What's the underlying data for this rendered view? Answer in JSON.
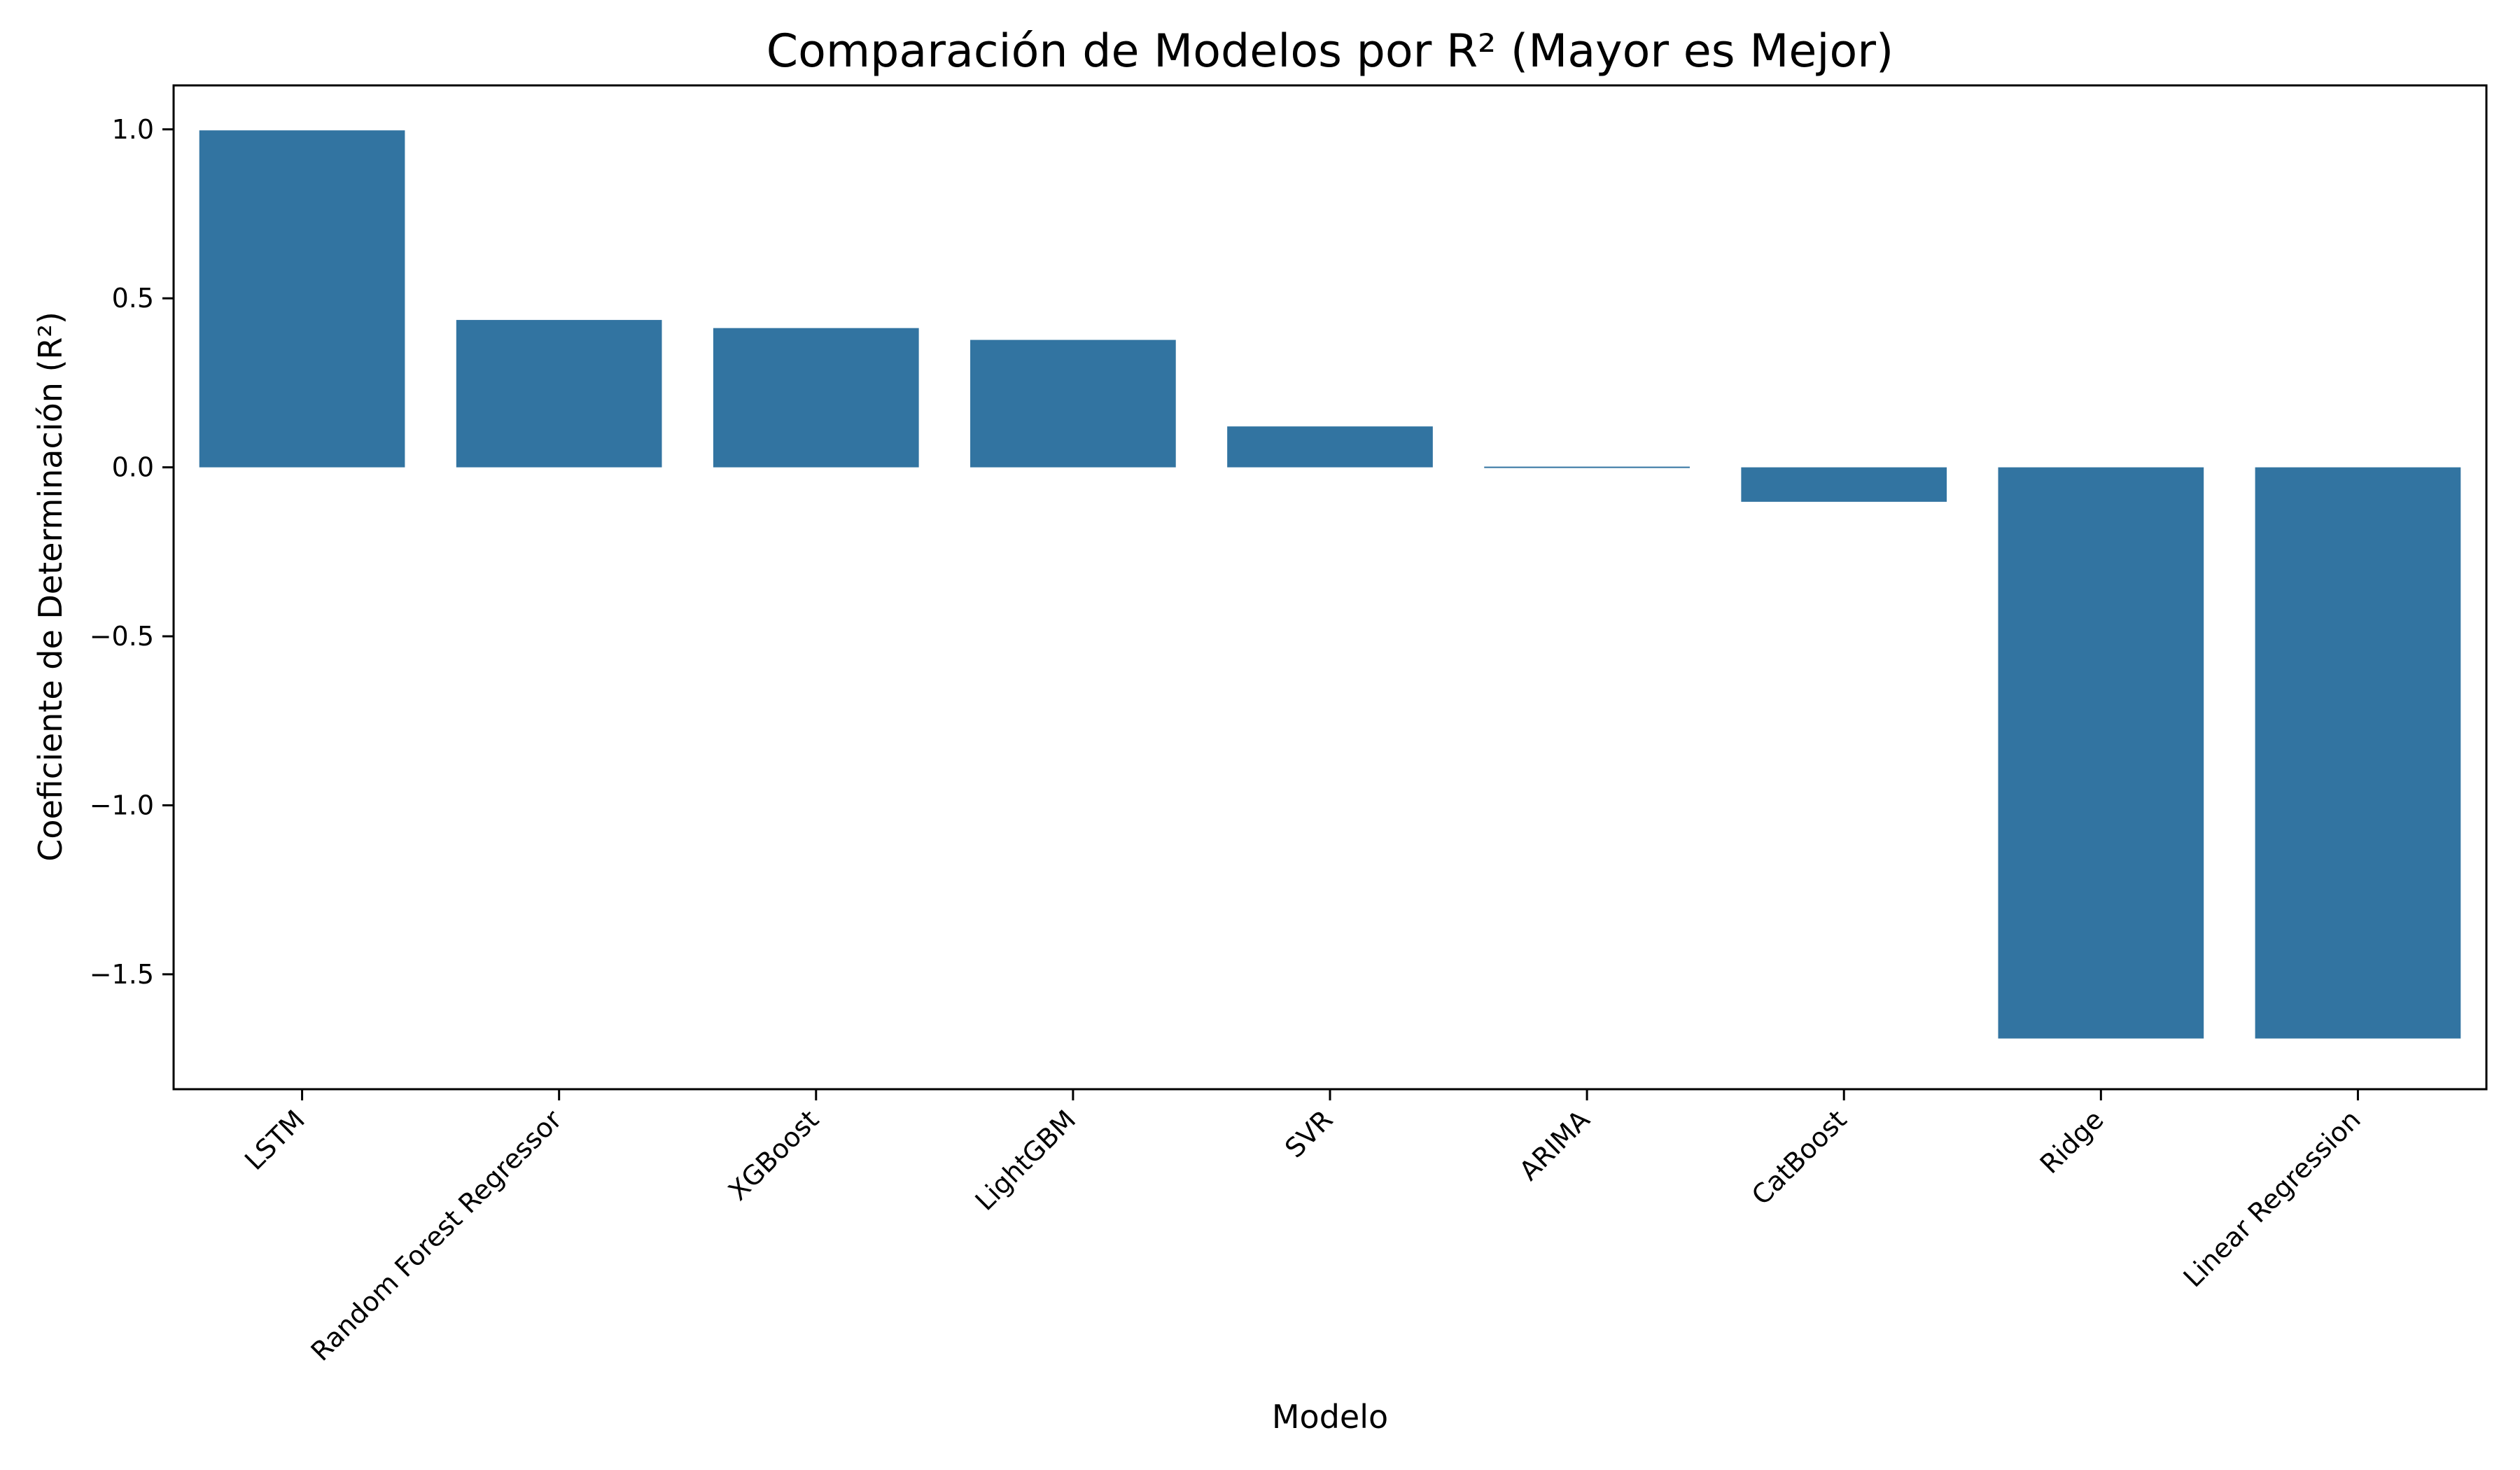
{
  "chart_data": {
    "type": "bar",
    "title": "Comparación de Modelos por R² (Mayor es Mejor)",
    "xlabel": "Modelo",
    "ylabel": "Coeficiente de Determinación (R²)",
    "categories": [
      "LSTM",
      "Random Forest Regressor",
      "XGBoost",
      "LightGBM",
      "SVR",
      "ARIMA",
      "CatBoost",
      "Ridge",
      "Linear Regression"
    ],
    "values": [
      0.997,
      0.436,
      0.412,
      0.377,
      0.121,
      -0.004,
      -0.102,
      -1.69,
      -1.69
    ],
    "ylim": [
      -1.84,
      1.13
    ],
    "yticks": [
      1.0,
      0.5,
      0.0,
      -0.5,
      -1.0,
      -1.5
    ],
    "ytick_labels": [
      "1.0",
      "0.5",
      "0.0",
      "−0.5",
      "−1.0",
      "−1.5"
    ],
    "bar_color": "#3274a1",
    "grid": false,
    "legend": "none"
  }
}
